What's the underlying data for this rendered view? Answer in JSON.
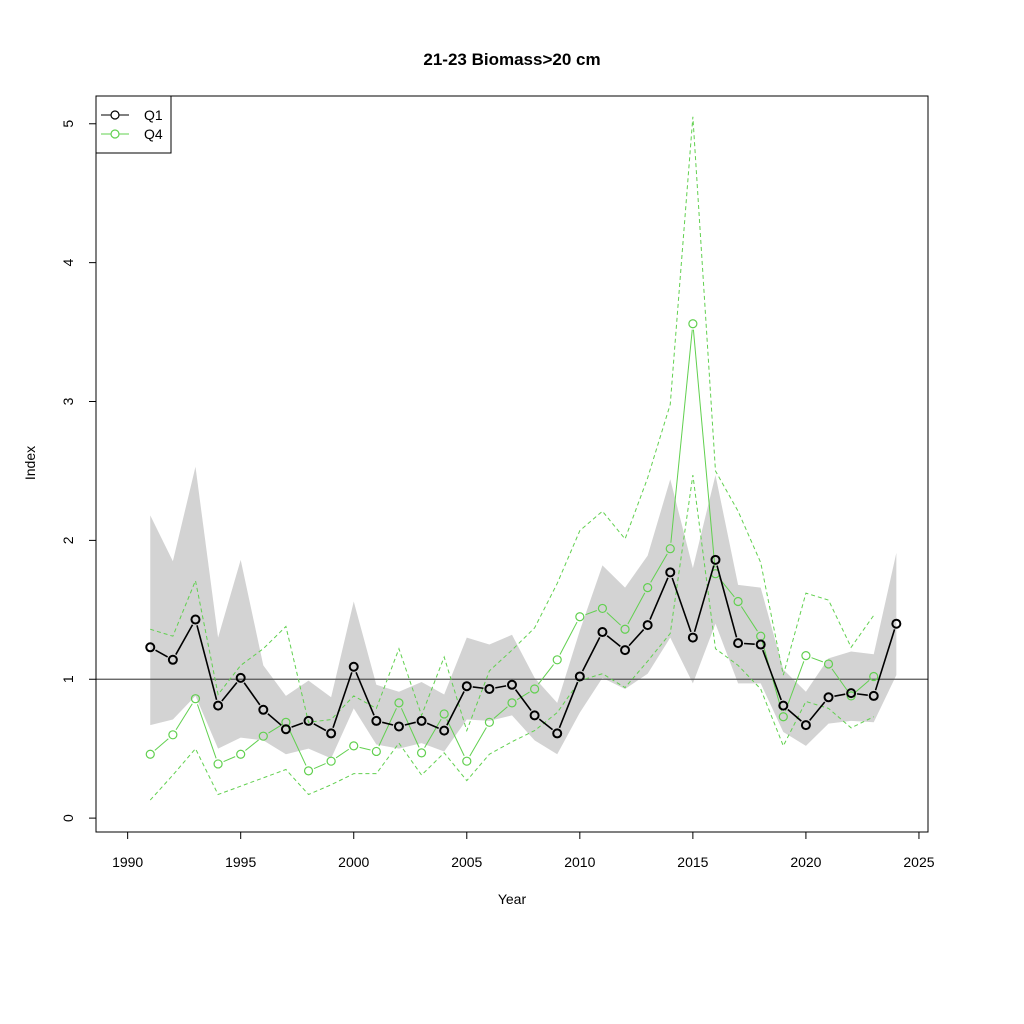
{
  "chart_data": {
    "type": "line",
    "title": "21-23 Biomass>20 cm",
    "xlabel": "Year",
    "ylabel": "Index",
    "xlim": [
      1990,
      2025
    ],
    "ylim": [
      0,
      5
    ],
    "x_ticks": [
      "1990",
      "1995",
      "2000",
      "2005",
      "2010",
      "2015",
      "2020",
      "2025"
    ],
    "y_ticks": [
      "0",
      "1",
      "2",
      "3",
      "4",
      "5"
    ],
    "reference_line": 1,
    "legend_position": "top-left",
    "series": [
      {
        "name": "Q1",
        "color": "#000000",
        "band_color": "#d3d3d3",
        "x": [
          1991,
          1992,
          1993,
          1994,
          1995,
          1996,
          1997,
          1998,
          1999,
          2000,
          2001,
          2002,
          2003,
          2004,
          2005,
          2006,
          2007,
          2008,
          2009,
          2010,
          2011,
          2012,
          2013,
          2014,
          2015,
          2016,
          2017,
          2018,
          2019,
          2020,
          2021,
          2022,
          2023,
          2024
        ],
        "values": [
          1.23,
          1.14,
          1.43,
          0.81,
          1.01,
          0.78,
          0.64,
          0.7,
          0.61,
          1.09,
          0.7,
          0.66,
          0.7,
          0.63,
          0.95,
          0.93,
          0.96,
          0.74,
          0.61,
          1.02,
          1.34,
          1.21,
          1.39,
          1.77,
          1.3,
          1.86,
          1.26,
          1.25,
          0.81,
          0.67,
          0.87,
          0.9,
          0.88,
          1.4
        ],
        "upper": [
          2.18,
          1.85,
          2.53,
          1.3,
          1.86,
          1.1,
          0.88,
          0.99,
          0.87,
          1.56,
          0.96,
          0.91,
          0.98,
          0.89,
          1.3,
          1.25,
          1.32,
          1.01,
          0.83,
          1.35,
          1.82,
          1.66,
          1.89,
          2.44,
          1.8,
          2.47,
          1.68,
          1.66,
          1.07,
          0.91,
          1.15,
          1.2,
          1.18,
          1.91
        ],
        "lower": [
          0.67,
          0.71,
          0.88,
          0.5,
          0.58,
          0.56,
          0.46,
          0.5,
          0.43,
          0.79,
          0.53,
          0.5,
          0.54,
          0.48,
          0.71,
          0.7,
          0.74,
          0.56,
          0.46,
          0.76,
          1.01,
          0.93,
          1.04,
          1.3,
          0.97,
          1.4,
          0.97,
          0.97,
          0.62,
          0.52,
          0.68,
          0.7,
          0.69,
          1.03
        ]
      },
      {
        "name": "Q4",
        "color": "#61d04f",
        "x": [
          1991,
          1992,
          1993,
          1994,
          1995,
          1996,
          1997,
          1998,
          1999,
          2000,
          2001,
          2002,
          2003,
          2004,
          2005,
          2006,
          2007,
          2008,
          2009,
          2010,
          2011,
          2012,
          2013,
          2014,
          2015,
          2016,
          2017,
          2018,
          2019,
          2020,
          2021,
          2022,
          2023
        ],
        "values": [
          0.46,
          0.6,
          0.86,
          0.39,
          0.46,
          0.59,
          0.69,
          0.34,
          0.41,
          0.52,
          0.48,
          0.83,
          0.47,
          0.75,
          0.41,
          0.69,
          0.83,
          0.93,
          1.14,
          1.45,
          1.51,
          1.36,
          1.66,
          1.94,
          3.56,
          1.76,
          1.56,
          1.31,
          0.73,
          1.17,
          1.11,
          0.88,
          1.02
        ],
        "upper": [
          1.36,
          1.31,
          1.71,
          0.89,
          1.1,
          1.22,
          1.38,
          0.69,
          0.71,
          0.88,
          0.79,
          1.22,
          0.74,
          1.16,
          0.63,
          1.06,
          1.21,
          1.37,
          1.69,
          2.07,
          2.21,
          2.01,
          2.45,
          2.98,
          5.05,
          2.5,
          2.21,
          1.84,
          1.03,
          1.62,
          1.57,
          1.23,
          1.46
        ],
        "lower": [
          0.13,
          0.31,
          0.5,
          0.17,
          0.23,
          0.29,
          0.35,
          0.17,
          0.24,
          0.32,
          0.32,
          0.54,
          0.31,
          0.47,
          0.27,
          0.46,
          0.55,
          0.63,
          0.76,
          0.99,
          1.04,
          0.94,
          1.13,
          1.33,
          2.47,
          1.22,
          1.1,
          0.93,
          0.52,
          0.84,
          0.79,
          0.65,
          0.73
        ]
      }
    ]
  }
}
